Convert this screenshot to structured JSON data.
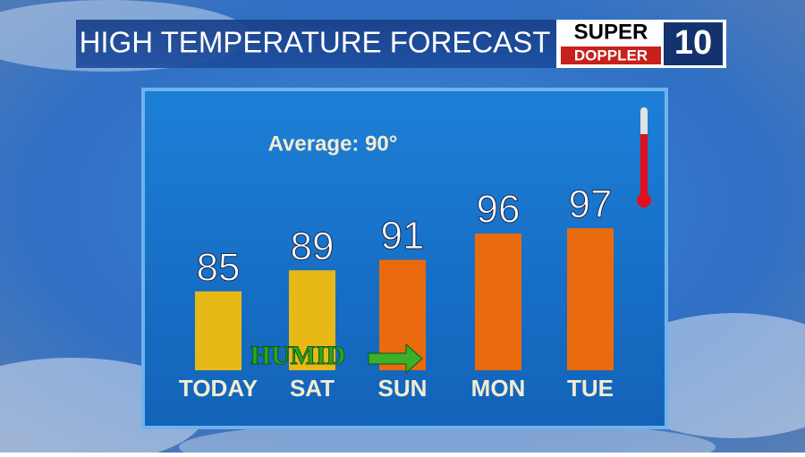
{
  "chart_data": {
    "type": "bar",
    "title": "HIGH TEMPERATURE FORECAST",
    "logo": {
      "line1": "SUPER",
      "line2": "DOPPLER",
      "number": "10"
    },
    "annotation": "Average: 90°",
    "note": "HUMID",
    "categories": [
      "TODAY",
      "SAT",
      "SUN",
      "MON",
      "TUE"
    ],
    "values": [
      85,
      89,
      91,
      96,
      97
    ],
    "colors": [
      "#e8b817",
      "#e8b817",
      "#ea6a0e",
      "#ea6a0e",
      "#ea6a0e"
    ],
    "ylim": [
      70,
      120
    ]
  }
}
